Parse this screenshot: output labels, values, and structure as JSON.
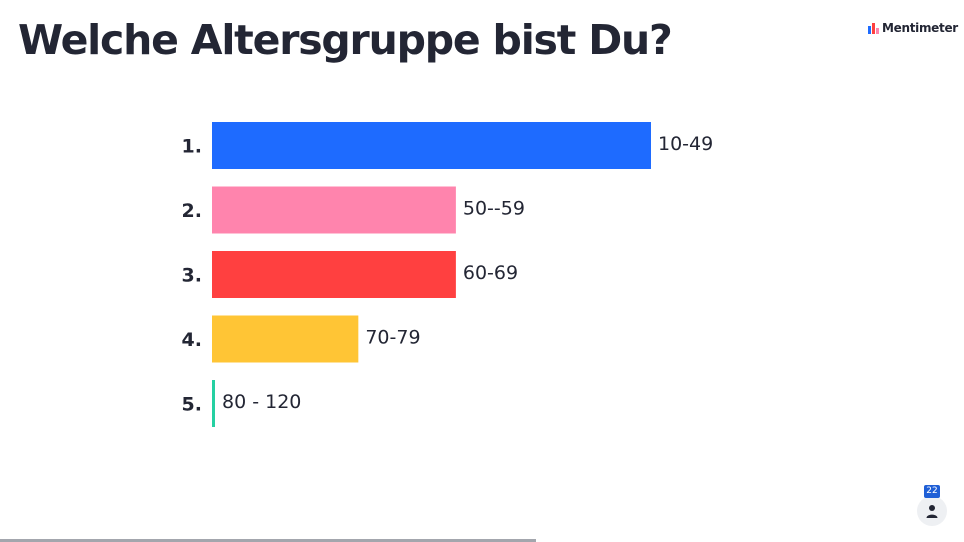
{
  "slide": {
    "brand_name": "Mentimeter",
    "participant_count": "22"
  },
  "chart_data": {
    "type": "bar",
    "orientation": "horizontal",
    "title": "Welche Altersgruppe bist Du?",
    "ranks": [
      "1.",
      "2.",
      "3.",
      "4.",
      "5."
    ],
    "categories": [
      "10-49",
      "50--59",
      "60-69",
      "70-79",
      "80 - 120"
    ],
    "values": [
      9,
      5,
      5,
      3,
      0
    ],
    "colors": [
      "#1e6bff",
      "#ff84ad",
      "#ff4040",
      "#ffc535",
      "#25d0a2"
    ],
    "xlim": [
      0,
      9
    ],
    "grid": false,
    "legend": "none"
  }
}
